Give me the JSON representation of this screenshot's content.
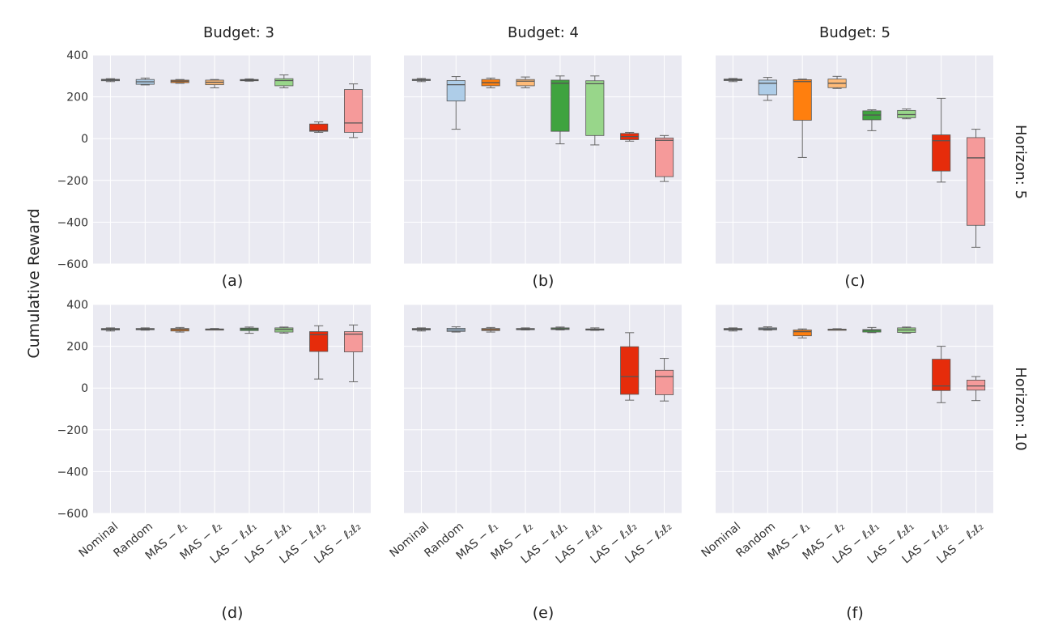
{
  "figure": {
    "ylabel": "Cumulative Reward",
    "column_titles": [
      "Budget: 3",
      "Budget: 4",
      "Budget: 5"
    ],
    "row_titles": [
      "Horizon: 5",
      "Horizon: 10"
    ],
    "panel_labels": [
      "(a)",
      "(b)",
      "(c)",
      "(d)",
      "(e)",
      "(f)"
    ]
  },
  "chart_data": {
    "type": "box",
    "categories": [
      "Nominal",
      "Random",
      "MAS − ℓ₁",
      "MAS − ℓ₂",
      "LAS − ℓ₁ℓ₁",
      "LAS − ℓ₂ℓ₁",
      "LAS − ℓ₁ℓ₂",
      "LAS − ℓ₂ℓ₂"
    ],
    "colors": [
      "#c6dbef",
      "#aecde8",
      "#ff7f0e",
      "#ffbb78",
      "#3fa33f",
      "#98d68a",
      "#e62c0b",
      "#f59a9a"
    ],
    "median_color": "#555555",
    "background": "#eaeaf2",
    "ylim": [
      -600,
      400
    ],
    "yticks": [
      -600,
      -400,
      -200,
      0,
      200,
      400
    ],
    "grid": true,
    "panels": [
      {
        "label": "(a)",
        "budget": 3,
        "horizon": 5,
        "boxes": [
          {
            "min": 273,
            "q1": 277,
            "median": 281,
            "q3": 284,
            "max": 287
          },
          {
            "min": 257,
            "q1": 260,
            "median": 272,
            "q3": 283,
            "max": 290
          },
          {
            "min": 265,
            "q1": 268,
            "median": 275,
            "q3": 280,
            "max": 283
          },
          {
            "min": 243,
            "q1": 258,
            "median": 270,
            "q3": 280,
            "max": 283
          },
          {
            "min": 275,
            "q1": 277,
            "median": 280,
            "q3": 283,
            "max": 286
          },
          {
            "min": 243,
            "q1": 253,
            "median": 278,
            "q3": 287,
            "max": 305
          },
          {
            "min": 30,
            "q1": 35,
            "median": 38,
            "q3": 70,
            "max": 80
          },
          {
            "min": 5,
            "q1": 30,
            "median": 75,
            "q3": 235,
            "max": 262
          }
        ]
      },
      {
        "label": "(b)",
        "budget": 4,
        "horizon": 5,
        "boxes": [
          {
            "min": 273,
            "q1": 278,
            "median": 281,
            "q3": 284,
            "max": 288
          },
          {
            "min": 45,
            "q1": 180,
            "median": 258,
            "q3": 278,
            "max": 297
          },
          {
            "min": 243,
            "q1": 253,
            "median": 268,
            "q3": 283,
            "max": 290
          },
          {
            "min": 243,
            "q1": 253,
            "median": 275,
            "q3": 283,
            "max": 295
          },
          {
            "min": -25,
            "q1": 35,
            "median": 265,
            "q3": 280,
            "max": 300
          },
          {
            "min": -30,
            "q1": 15,
            "median": 263,
            "q3": 277,
            "max": 300
          },
          {
            "min": -12,
            "q1": -5,
            "median": 10,
            "q3": 25,
            "max": 30
          },
          {
            "min": -205,
            "q1": -182,
            "median": -8,
            "q3": 3,
            "max": 15
          }
        ]
      },
      {
        "label": "(c)",
        "budget": 5,
        "horizon": 5,
        "boxes": [
          {
            "min": 273,
            "q1": 278,
            "median": 281,
            "q3": 285,
            "max": 288
          },
          {
            "min": 183,
            "q1": 210,
            "median": 265,
            "q3": 280,
            "max": 293
          },
          {
            "min": -90,
            "q1": 88,
            "median": 273,
            "q3": 282,
            "max": 285
          },
          {
            "min": 240,
            "q1": 244,
            "median": 265,
            "q3": 285,
            "max": 298
          },
          {
            "min": 38,
            "q1": 90,
            "median": 113,
            "q3": 133,
            "max": 138
          },
          {
            "min": 95,
            "q1": 100,
            "median": 115,
            "q3": 135,
            "max": 142
          },
          {
            "min": -208,
            "q1": -155,
            "median": -10,
            "q3": 18,
            "max": 193
          },
          {
            "min": -520,
            "q1": -415,
            "median": -92,
            "q3": 5,
            "max": 45
          }
        ]
      },
      {
        "label": "(d)",
        "budget": 3,
        "horizon": 10,
        "boxes": [
          {
            "min": 273,
            "q1": 278,
            "median": 281,
            "q3": 285,
            "max": 288
          },
          {
            "min": 277,
            "q1": 279,
            "median": 282,
            "q3": 285,
            "max": 288
          },
          {
            "min": 268,
            "q1": 273,
            "median": 280,
            "q3": 285,
            "max": 290
          },
          {
            "min": 278,
            "q1": 279,
            "median": 281,
            "q3": 283,
            "max": 285
          },
          {
            "min": 262,
            "q1": 275,
            "median": 282,
            "q3": 287,
            "max": 292
          },
          {
            "min": 263,
            "q1": 268,
            "median": 280,
            "q3": 288,
            "max": 292
          },
          {
            "min": 43,
            "q1": 175,
            "median": 255,
            "q3": 270,
            "max": 298
          },
          {
            "min": 30,
            "q1": 173,
            "median": 258,
            "q3": 270,
            "max": 302
          }
        ]
      },
      {
        "label": "(e)",
        "budget": 4,
        "horizon": 10,
        "boxes": [
          {
            "min": 273,
            "q1": 278,
            "median": 281,
            "q3": 285,
            "max": 288
          },
          {
            "min": 268,
            "q1": 271,
            "median": 278,
            "q3": 286,
            "max": 293
          },
          {
            "min": 268,
            "q1": 275,
            "median": 280,
            "q3": 285,
            "max": 290
          },
          {
            "min": 278,
            "q1": 280,
            "median": 282,
            "q3": 285,
            "max": 288
          },
          {
            "min": 278,
            "q1": 280,
            "median": 283,
            "q3": 288,
            "max": 292
          },
          {
            "min": 276,
            "q1": 278,
            "median": 280,
            "q3": 283,
            "max": 288
          },
          {
            "min": -58,
            "q1": -30,
            "median": 55,
            "q3": 198,
            "max": 265
          },
          {
            "min": -62,
            "q1": -32,
            "median": 55,
            "q3": 85,
            "max": 142
          }
        ]
      },
      {
        "label": "(f)",
        "budget": 5,
        "horizon": 10,
        "boxes": [
          {
            "min": 273,
            "q1": 278,
            "median": 281,
            "q3": 285,
            "max": 288
          },
          {
            "min": 277,
            "q1": 279,
            "median": 283,
            "q3": 288,
            "max": 293
          },
          {
            "min": 240,
            "q1": 250,
            "median": 270,
            "q3": 278,
            "max": 283
          },
          {
            "min": 278,
            "q1": 280,
            "median": 281,
            "q3": 282,
            "max": 284
          },
          {
            "min": 265,
            "q1": 268,
            "median": 277,
            "q3": 280,
            "max": 290
          },
          {
            "min": 263,
            "q1": 266,
            "median": 278,
            "q3": 288,
            "max": 292
          },
          {
            "min": -70,
            "q1": -12,
            "median": 10,
            "q3": 138,
            "max": 200
          },
          {
            "min": -60,
            "q1": -10,
            "median": 10,
            "q3": 38,
            "max": 55
          }
        ]
      }
    ]
  }
}
